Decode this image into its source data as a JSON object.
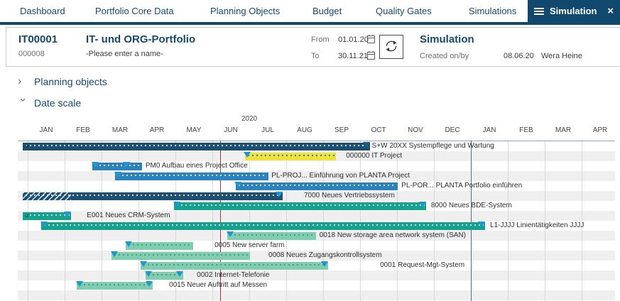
{
  "nav": {
    "items": [
      "Dashboard",
      "Portfolio Core Data",
      "Planning Objects",
      "Budget",
      "Quality Gates",
      "Simulations"
    ],
    "active_tab": {
      "label": "Simulation"
    }
  },
  "icons": {
    "close": "×",
    "continues_left": "«",
    "chevron": "›"
  },
  "header": {
    "portfolio_id": "IT00001",
    "portfolio_name": "IT- und ORG-Portfolio",
    "simulation_id": "000008",
    "simulation_name": "-Please enter a name-",
    "from_label": "From",
    "from_value": "01.01.20",
    "to_label": "To",
    "to_value": "30.11.21",
    "panel_title": "Simulation",
    "created_label": "Created on/by",
    "created_date": "08.06.20",
    "created_by": "Wera Heine"
  },
  "sections": {
    "planning_objects": "Planning objects",
    "date_scale": "Date scale"
  },
  "gantt": {
    "year_label": "2020",
    "months": [
      "JAN",
      "FEB",
      "MAR",
      "APR",
      "MAY",
      "JUN",
      "JUL",
      "AUG",
      "SEP",
      "OCT",
      "NOV",
      "DEC",
      "JAN",
      "FEB",
      "MAR",
      "APR"
    ],
    "today_line_u": 5.21,
    "year_line_u": 12,
    "colors": {
      "navy": "#1d5070",
      "blue": "#2c82ba",
      "teal": "#16a18e",
      "green": "#80cdb1",
      "yellow": "#f2e33c",
      "marker": "#1e96d2",
      "marker_dark": "#1a5d87",
      "today_line": "#9e3a38",
      "year_line": "#4f6d86"
    },
    "rows": [
      {
        "label": "S+W 20XX Systempflege und Wartung",
        "start": -0.135,
        "end": 9.27,
        "color": "navy",
        "cut_left": true,
        "markers": [
          {
            "u": 9.17,
            "c": "dark"
          }
        ],
        "label_u": 9.32
      },
      {
        "label": "000000 IT Project",
        "start": 5.88,
        "end": 8.35,
        "color": "yellow",
        "markers": [
          {
            "u": 5.94
          }
        ],
        "label_u": 8.62
      },
      {
        "label": "PM0  Aufbau eines Project Office",
        "start": 1.75,
        "end": 3.1,
        "color": "blue",
        "markers": [
          {
            "u": 1.83
          },
          {
            "u": 2.67
          }
        ],
        "label_u": 3.19
      },
      {
        "label": "PL-PROJ...  Einführung von PLANTA Project",
        "start": 2.37,
        "end": 6.52,
        "color": "blue",
        "markers": [
          {
            "u": 2.44
          }
        ],
        "label_u": 6.6
      },
      {
        "label": "PL-POR...  PLANTA Portfolio einführen",
        "start": 5.63,
        "end": 10.02,
        "color": "blue",
        "markers": [
          {
            "u": 5.7
          }
        ],
        "label_u": 10.12
      },
      {
        "label": "7000 Neues Vertriebssystem",
        "start": -0.135,
        "end": 6.9,
        "color": "navy",
        "hatch_to": 1.17,
        "markers": [
          {
            "u": 6.8
          }
        ],
        "label_u": 7.48
      },
      {
        "label": "8000 Neues BDE-System",
        "start": 3.96,
        "end": 10.79,
        "color": "teal",
        "markers": [
          {
            "u": 4.03
          },
          {
            "u": 10.7
          }
        ],
        "label_u": 10.92
      },
      {
        "label": "E001  Neues CRM-System",
        "start": -0.135,
        "end": 1.17,
        "color": "teal",
        "cut_left": true,
        "markers": [
          {
            "u": 1.08
          }
        ],
        "label_u": 1.6
      },
      {
        "label": "L1-JJJJ Linientätigkeiten JJJJ",
        "start": 0.37,
        "end": 12.38,
        "color": "teal",
        "markers": [
          {
            "u": 0.45
          },
          {
            "u": 12.28
          }
        ],
        "label_u": 12.52
      },
      {
        "label": "0018  New storage area network system (SAN)",
        "start": 5.4,
        "end": 7.81,
        "color": "green",
        "markers": [
          {
            "u": 5.48
          }
        ],
        "label_u": 7.9
      },
      {
        "label": "0005  New server farm",
        "start": 2.65,
        "end": 4.48,
        "color": "green",
        "markers": [
          {
            "u": 2.73
          }
        ],
        "label_u": 5.06
      },
      {
        "label": "0008  Neues Zugangskontrollsystem",
        "start": 2.27,
        "end": 6.02,
        "color": "green",
        "markers": [
          {
            "u": 2.35
          }
        ],
        "label_u": 6.52
      },
      {
        "label": "0001  Request-Mgt-System",
        "start": 3.06,
        "end": 8.13,
        "color": "green",
        "markers": [
          {
            "u": 3.14
          },
          {
            "u": 8.04
          }
        ],
        "label_u": 9.54
      },
      {
        "label": "0002  Internet-Telefonie",
        "start": 3.19,
        "end": 4.21,
        "color": "green",
        "markers": [
          {
            "u": 3.27
          },
          {
            "u": 4.12
          }
        ],
        "label_u": 4.58
      },
      {
        "label": "0015  Neuer Auftritt auf Messen",
        "start": 1.33,
        "end": 3.38,
        "color": "green",
        "markers": [
          {
            "u": 1.41
          },
          {
            "u": 3.29
          }
        ],
        "label_u": 3.83
      }
    ]
  }
}
